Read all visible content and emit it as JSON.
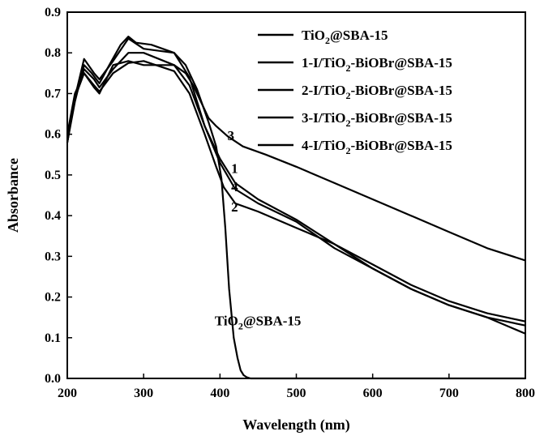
{
  "chart_data": {
    "type": "line",
    "xlabel": "Wavelength (nm)",
    "ylabel": "Absorbance",
    "xlim": [
      200,
      800
    ],
    "ylim": [
      0.0,
      0.9
    ],
    "x_ticks": [
      "200",
      "300",
      "400",
      "500",
      "600",
      "700",
      "800"
    ],
    "y_ticks": [
      "0.0",
      "0.1",
      "0.2",
      "0.3",
      "0.4",
      "0.5",
      "0.6",
      "0.7",
      "0.8",
      "0.9"
    ],
    "grid": false,
    "legend_position": "top-right",
    "legend": [
      {
        "prefix": "TiO",
        "sub": "2",
        "suffix": "@SBA-15"
      },
      {
        "prefix": "1-I/TiO",
        "sub": "2",
        "suffix": "-BiOBr@SBA-15"
      },
      {
        "prefix": "2-I/TiO",
        "sub": "2",
        "suffix": "-BiOBr@SBA-15"
      },
      {
        "prefix": "3-I/TiO",
        "sub": "2",
        "suffix": "-BiOBr@SBA-15"
      },
      {
        "prefix": "4-I/TiO",
        "sub": "2",
        "suffix": "-BiOBr@SBA-15"
      }
    ],
    "annotations": [
      {
        "text": "3",
        "x": 415,
        "y": 0.585
      },
      {
        "text": "1",
        "x": 420,
        "y": 0.505
      },
      {
        "text": "4",
        "x": 420,
        "y": 0.46
      },
      {
        "text": "2",
        "x": 420,
        "y": 0.41
      },
      {
        "prefix": "TiO",
        "sub": "2",
        "suffix": "@SBA-15",
        "x": 425,
        "y": 0.13
      }
    ],
    "series": [
      {
        "x": [
          200,
          210,
          222,
          232,
          242,
          255,
          270,
          280,
          290,
          310,
          340,
          355,
          370,
          385,
          395,
          402,
          407,
          412,
          418,
          423,
          427,
          431,
          435,
          440,
          800
        ],
        "y": [
          0.58,
          0.68,
          0.77,
          0.75,
          0.725,
          0.77,
          0.82,
          0.84,
          0.825,
          0.82,
          0.8,
          0.77,
          0.71,
          0.63,
          0.57,
          0.49,
          0.37,
          0.22,
          0.1,
          0.05,
          0.02,
          0.008,
          0.003,
          0.0,
          0.0
        ]
      },
      {
        "x": [
          200,
          210,
          222,
          235,
          242,
          260,
          280,
          300,
          340,
          360,
          380,
          400,
          420,
          450,
          500,
          550,
          600,
          650,
          700,
          750,
          800
        ],
        "y": [
          0.58,
          0.69,
          0.76,
          0.735,
          0.715,
          0.76,
          0.8,
          0.8,
          0.77,
          0.72,
          0.62,
          0.54,
          0.48,
          0.44,
          0.39,
          0.33,
          0.28,
          0.23,
          0.19,
          0.16,
          0.14
        ]
      },
      {
        "x": [
          200,
          210,
          222,
          235,
          242,
          260,
          280,
          300,
          340,
          360,
          380,
          395,
          405,
          420,
          450,
          500,
          550,
          600,
          650,
          700,
          750,
          800
        ],
        "y": [
          0.58,
          0.69,
          0.75,
          0.72,
          0.705,
          0.75,
          0.775,
          0.78,
          0.755,
          0.7,
          0.6,
          0.52,
          0.47,
          0.43,
          0.41,
          0.37,
          0.33,
          0.27,
          0.22,
          0.18,
          0.15,
          0.11
        ]
      },
      {
        "x": [
          200,
          210,
          222,
          235,
          242,
          260,
          280,
          300,
          340,
          355,
          365,
          375,
          385,
          395,
          410,
          430,
          460,
          500,
          550,
          600,
          650,
          700,
          750,
          800
        ],
        "y": [
          0.6,
          0.7,
          0.75,
          0.715,
          0.7,
          0.77,
          0.78,
          0.77,
          0.77,
          0.75,
          0.72,
          0.68,
          0.64,
          0.62,
          0.595,
          0.57,
          0.55,
          0.52,
          0.48,
          0.44,
          0.4,
          0.36,
          0.32,
          0.29
        ]
      },
      {
        "x": [
          200,
          210,
          222,
          235,
          242,
          260,
          280,
          300,
          340,
          360,
          380,
          400,
          420,
          450,
          500,
          550,
          600,
          650,
          700,
          750,
          800
        ],
        "y": [
          0.58,
          0.69,
          0.785,
          0.75,
          0.735,
          0.78,
          0.835,
          0.81,
          0.8,
          0.74,
          0.62,
          0.53,
          0.465,
          0.43,
          0.385,
          0.32,
          0.27,
          0.22,
          0.18,
          0.15,
          0.13
        ]
      }
    ]
  }
}
